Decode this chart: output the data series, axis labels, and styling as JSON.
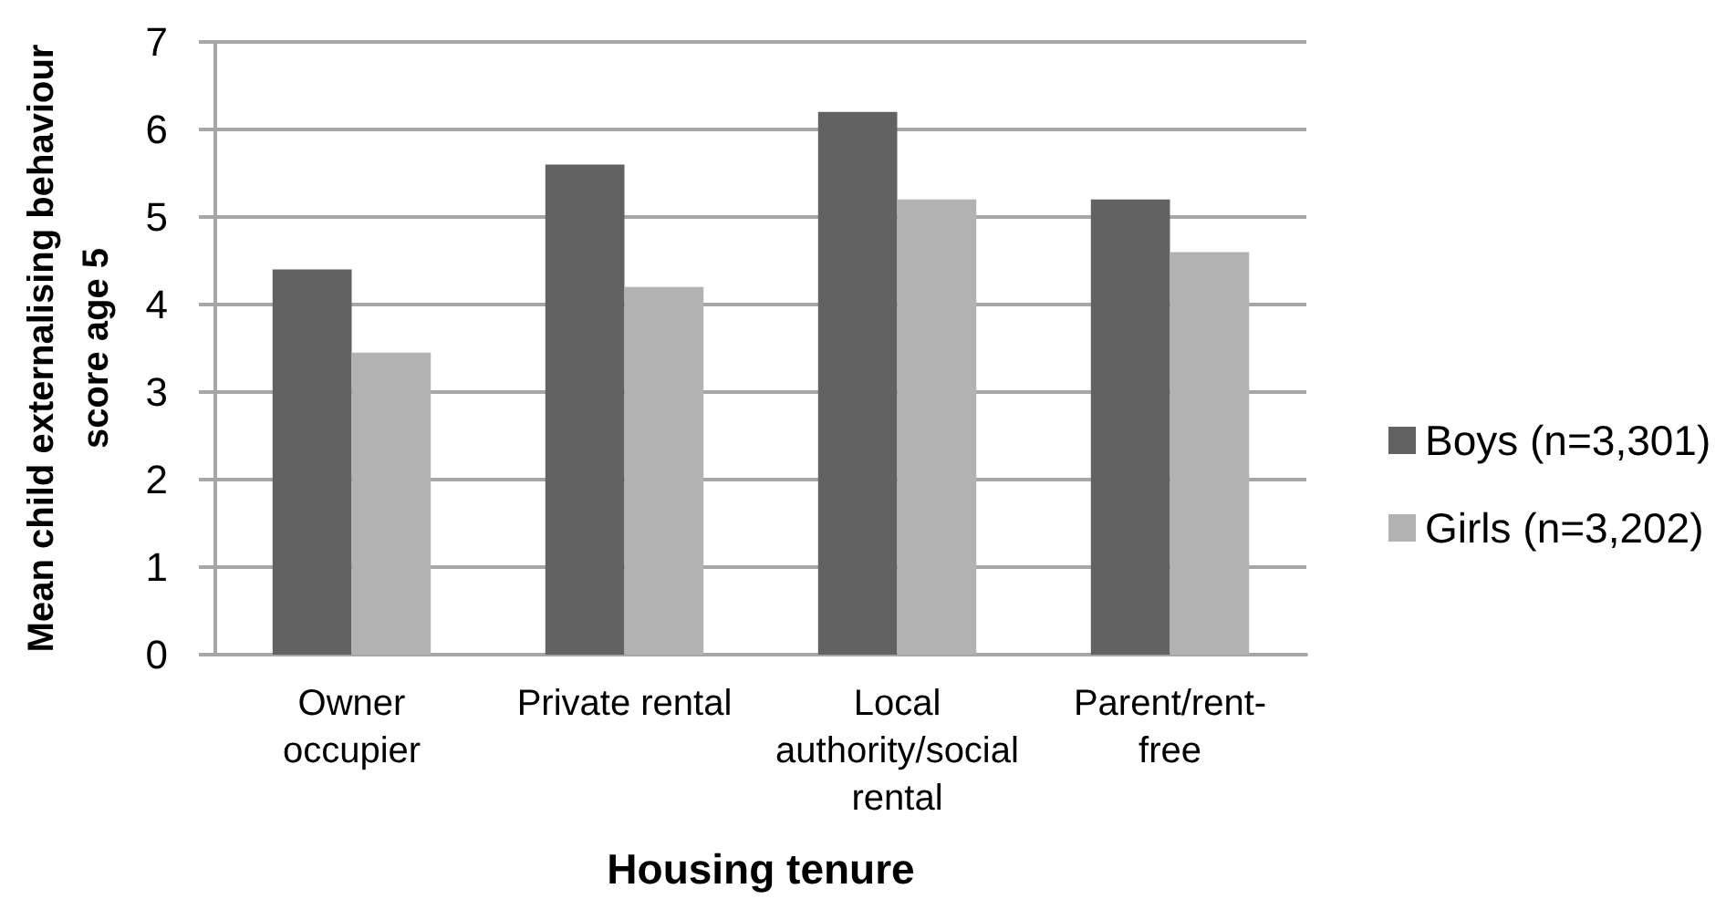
{
  "chart_data": {
    "type": "bar",
    "xlabel": "Housing tenure",
    "ylabel": "Mean child externalising behaviour score age 5",
    "categories": [
      "Owner occupier",
      "Private rental",
      "Local authority/social rental",
      "Parent/rent-free"
    ],
    "series": [
      {
        "name": "Boys (n=3,301)",
        "color": "#626262",
        "values": [
          4.4,
          5.6,
          6.2,
          5.2
        ]
      },
      {
        "name": "Girls (n=3,202)",
        "color": "#b2b2b2",
        "values": [
          3.45,
          4.2,
          5.2,
          4.6
        ]
      }
    ],
    "ylim": [
      0,
      7
    ],
    "yticks": [
      0,
      1,
      2,
      3,
      4,
      5,
      6,
      7
    ],
    "grid": "y",
    "legend": "right"
  }
}
